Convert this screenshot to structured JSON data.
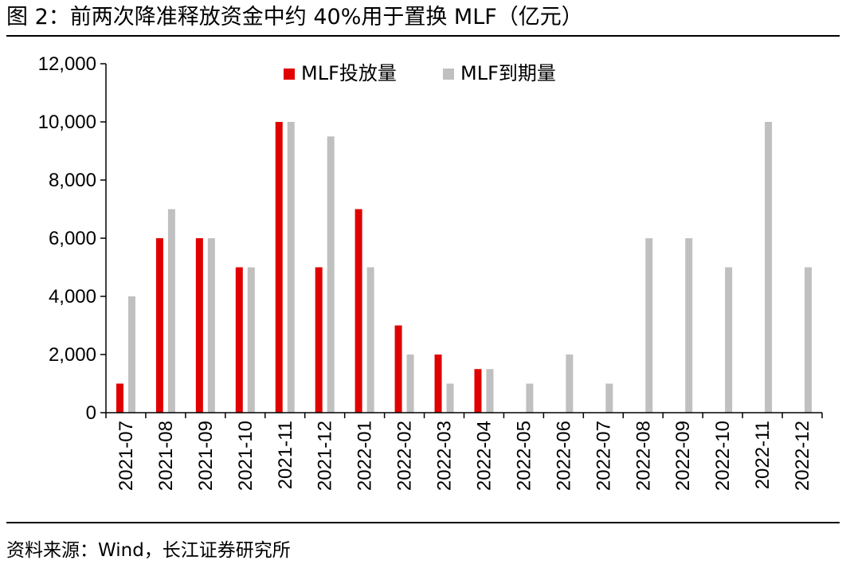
{
  "figure": {
    "title": "图 2：前两次降准释放资金中约 40%用于置换 MLF（亿元）",
    "source": "资料来源：Wind，长江证券研究所"
  },
  "chart_data": {
    "type": "bar",
    "title": "图 2：前两次降准释放资金中约 40%用于置换 MLF（亿元）",
    "xlabel": "",
    "ylabel": "",
    "ylim": [
      0,
      12000
    ],
    "yticks": [
      0,
      2000,
      4000,
      6000,
      8000,
      10000,
      12000
    ],
    "ytick_labels": [
      "0",
      "2,000",
      "4,000",
      "6,000",
      "8,000",
      "10,000",
      "12,000"
    ],
    "grid": false,
    "legend_position": "top-center",
    "categories": [
      "2021-07",
      "2021-08",
      "2021-09",
      "2021-10",
      "2021-11",
      "2021-12",
      "2022-01",
      "2022-02",
      "2022-03",
      "2022-04",
      "2022-05",
      "2022-06",
      "2022-07",
      "2022-08",
      "2022-09",
      "2022-10",
      "2022-11",
      "2022-12"
    ],
    "series": [
      {
        "name": "MLF投放量",
        "color": "#e00000",
        "values": [
          1000,
          6000,
          6000,
          5000,
          10000,
          5000,
          7000,
          3000,
          2000,
          1500,
          null,
          null,
          null,
          null,
          null,
          null,
          null,
          null
        ]
      },
      {
        "name": "MLF到期量",
        "color": "#c0c0c0",
        "values": [
          4000,
          7000,
          6000,
          5000,
          10000,
          9500,
          5000,
          2000,
          1000,
          1500,
          1000,
          2000,
          1000,
          6000,
          6000,
          5000,
          10000,
          5000
        ]
      }
    ]
  }
}
